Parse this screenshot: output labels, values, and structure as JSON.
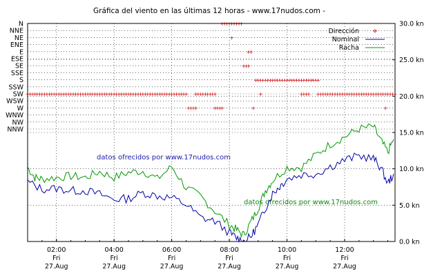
{
  "chart_data": {
    "type": "line",
    "title": "Gráfica del viento en las últimas 12 horas - www.17nudos.com -",
    "watermarks": [
      "datos ofrecidos por www.17nudos.com",
      "datos ofrecidos por www.17nudos.com"
    ],
    "x_ticks": [
      {
        "time": "02:00",
        "day": "Fri",
        "date": "27.Aug"
      },
      {
        "time": "04:00",
        "day": "Fri",
        "date": "27.Aug"
      },
      {
        "time": "06:00",
        "day": "Fri",
        "date": "27.Aug"
      },
      {
        "time": "08:00",
        "day": "Fri",
        "date": "27.Aug"
      },
      {
        "time": "10:00",
        "day": "Fri",
        "date": "27.Aug"
      },
      {
        "time": "12:00",
        "day": "Fri",
        "date": "27.Aug"
      }
    ],
    "x_range": [
      "01:00",
      "13:45"
    ],
    "y_right": {
      "ticks": [
        "30.0 kn",
        "25.0 kn",
        "20.0 kn",
        "15.0 kn",
        "10.0 kn",
        "5.0 kn",
        "0.0 kn"
      ],
      "ylim": [
        0,
        30
      ]
    },
    "y_left_directions": [
      "N",
      "NNE",
      "NE",
      "ENE",
      "E",
      "ESE",
      "SE",
      "SSE",
      "S",
      "SSW",
      "SW",
      "WSW",
      "W",
      "WNW",
      "NW",
      "NNW"
    ],
    "legend": {
      "placement": "top-right",
      "entries": [
        {
          "label": "Dirección",
          "color": "#cc0000"
        },
        {
          "label": "Nominal",
          "color": "#0000aa"
        },
        {
          "label": "Racha",
          "color": "#009900"
        }
      ]
    },
    "grid": true,
    "series": [
      {
        "name": "Nominal",
        "color": "#0000aa",
        "x_hours": [
          1.0,
          1.5,
          2.0,
          2.5,
          3.0,
          3.5,
          4.0,
          4.5,
          5.0,
          5.5,
          6.0,
          6.5,
          7.0,
          7.5,
          8.0,
          8.25,
          8.5,
          8.75,
          9.0,
          9.25,
          9.5,
          9.75,
          10.0,
          10.5,
          11.0,
          11.5,
          12.0,
          12.5,
          13.0,
          13.25,
          13.5,
          13.7
        ],
        "values": [
          8.2,
          7.2,
          7.3,
          7.0,
          7.0,
          6.5,
          5.8,
          5.9,
          6.7,
          6.3,
          6.0,
          5.1,
          3.3,
          2.8,
          1.2,
          0.5,
          0.0,
          0.7,
          2.3,
          4.6,
          6.6,
          7.6,
          8.6,
          9.2,
          9.3,
          10.3,
          11.2,
          11.8,
          11.4,
          10.2,
          8.0,
          9.3
        ]
      },
      {
        "name": "Racha",
        "color": "#009900",
        "x_hours": [
          1.0,
          1.25,
          1.5,
          2.0,
          2.5,
          3.0,
          3.5,
          4.0,
          4.5,
          5.0,
          5.5,
          6.0,
          6.5,
          7.0,
          7.5,
          8.0,
          8.25,
          8.5,
          8.75,
          9.0,
          9.25,
          9.5,
          10.0,
          10.5,
          11.0,
          11.5,
          12.0,
          12.5,
          13.0,
          13.25,
          13.5,
          13.7
        ],
        "values": [
          10.2,
          8.8,
          8.6,
          8.8,
          9.0,
          8.8,
          9.6,
          8.8,
          9.5,
          9.7,
          8.6,
          10.3,
          7.4,
          6.2,
          4.2,
          2.3,
          1.6,
          0.9,
          2.7,
          4.6,
          7.0,
          8.4,
          10.2,
          10.2,
          11.9,
          13.4,
          14.4,
          15.5,
          15.8,
          13.9,
          12.3,
          14.1
        ]
      },
      {
        "name": "Dirección",
        "color": "#cc0000",
        "points": [
          {
            "from": "01:00",
            "to": "06:30",
            "dir": "SW"
          },
          {
            "from": "06:35",
            "to": "06:50",
            "dir": "W"
          },
          {
            "from": "06:50",
            "to": "07:30",
            "dir": "SW"
          },
          {
            "from": "07:30",
            "to": "07:45",
            "dir": "W"
          },
          {
            "from": "07:45",
            "to": "08:25",
            "dir": "N"
          },
          {
            "from": "08:05",
            "to": "08:05",
            "dir": "NE"
          },
          {
            "from": "08:40",
            "to": "08:45",
            "dir": "E"
          },
          {
            "from": "08:30",
            "to": "08:40",
            "dir": "SE"
          },
          {
            "from": "08:50",
            "to": "08:50",
            "dir": "W"
          },
          {
            "from": "08:55",
            "to": "09:05",
            "dir": "S"
          },
          {
            "from": "09:05",
            "to": "09:05",
            "dir": "SW"
          },
          {
            "from": "09:10",
            "to": "10:45",
            "dir": "S"
          },
          {
            "from": "10:30",
            "to": "10:45",
            "dir": "SW"
          },
          {
            "from": "10:50",
            "to": "11:05",
            "dir": "S"
          },
          {
            "from": "11:05",
            "to": "13:45",
            "dir": "SW"
          },
          {
            "from": "13:25",
            "to": "13:25",
            "dir": "W"
          }
        ]
      }
    ]
  }
}
